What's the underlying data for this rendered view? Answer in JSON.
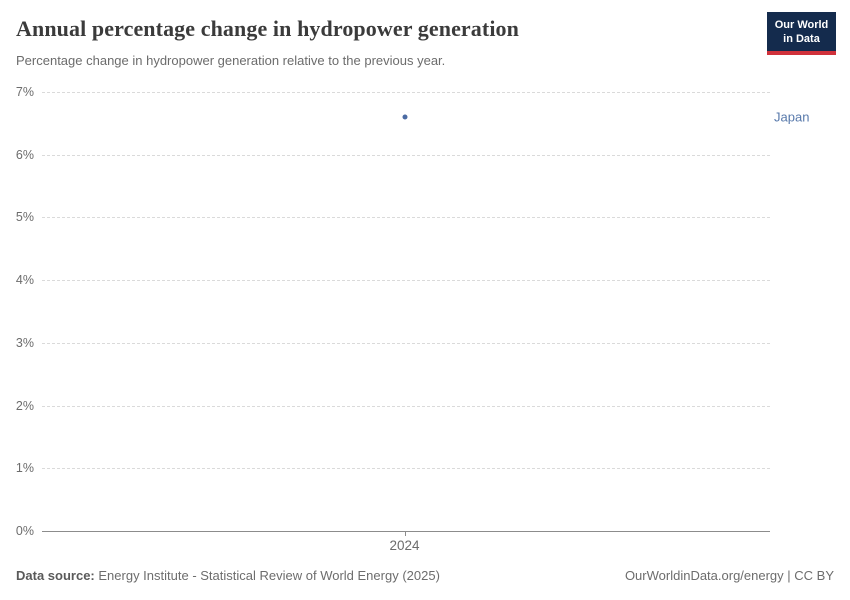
{
  "header": {
    "title": "Annual percentage change in hydropower generation",
    "subtitle": "Percentage change in hydropower generation relative to the previous year.",
    "logo": {
      "line1": "Our World",
      "line2": "in Data",
      "background_color": "#142b4d",
      "accent_color": "#d0313b"
    }
  },
  "chart_data": {
    "type": "scatter",
    "title": "Annual percentage change in hydropower generation",
    "series": [
      {
        "name": "Japan",
        "points": [
          {
            "x": 2024,
            "y": 6.6
          }
        ],
        "color": "#4b6ba3"
      }
    ],
    "x_ticks": [
      "2024"
    ],
    "y_ticks": [
      0,
      1,
      2,
      3,
      4,
      5,
      6,
      7
    ],
    "y_tick_suffix": "%",
    "ylim": [
      0,
      7
    ],
    "grid": "horizontal-dashed",
    "zero_line": "solid",
    "legend_position": "entity label right of point",
    "colors": {
      "gridline": "#dadada",
      "axis": "#8c8c8c",
      "tick_text": "#6c6c6c",
      "entity_label": "#5879ab"
    }
  },
  "footer": {
    "source_label": "Data source:",
    "source_value": "Energy Institute - Statistical Review of World Energy (2025)",
    "link": "OurWorldinData.org/energy | CC BY"
  }
}
